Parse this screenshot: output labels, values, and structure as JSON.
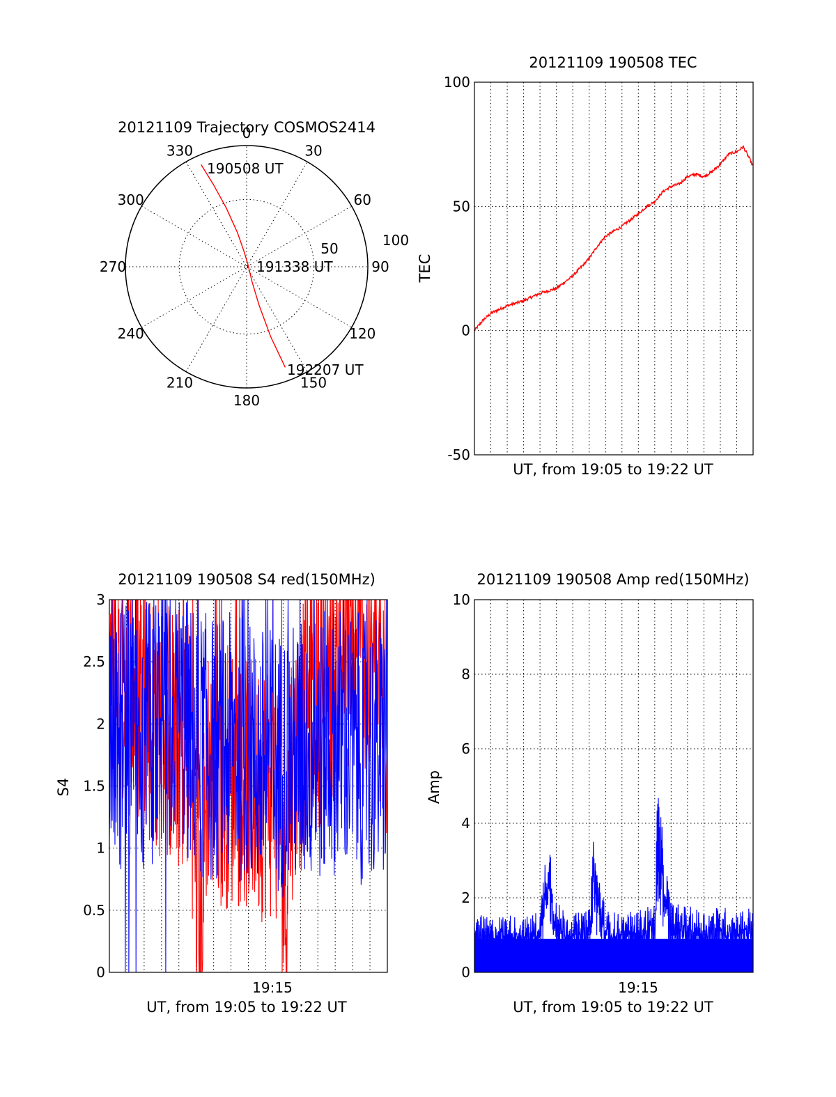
{
  "colors": {
    "red": "#ff0000",
    "blue": "#0000ff",
    "axis": "#000000"
  },
  "chart_data": [
    {
      "type": "polar",
      "title": "20121109 Trajectory COSMOS2414",
      "azimuth_labels": [
        "0",
        "30",
        "60",
        "90",
        "120",
        "150",
        "180",
        "210",
        "240",
        "270",
        "300",
        "330"
      ],
      "radial_labels": [
        "50",
        "100"
      ],
      "grid": true,
      "series": [
        {
          "color": "#ff0000",
          "points": [
            {
              "az": 336,
              "zenith": 83
            },
            {
              "az": 338,
              "zenith": 66
            },
            {
              "az": 341,
              "zenith": 46
            },
            {
              "az": 345,
              "zenith": 26
            },
            {
              "az": 350,
              "zenith": 12
            },
            {
              "az": 30,
              "zenith": 2
            },
            {
              "az": 160,
              "zenith": 12
            },
            {
              "az": 162,
              "zenith": 30
            },
            {
              "az": 161,
              "zenith": 55
            },
            {
              "az": 159,
              "zenith": 80
            }
          ]
        }
      ],
      "annotations": [
        "190508 UT",
        "191338 UT",
        "192207 UT"
      ]
    },
    {
      "type": "line",
      "title": "20121109 190508 TEC",
      "xlabel": "UT, from 19:05 to 19:22 UT",
      "ylabel": "TEC",
      "ylim": [
        -50,
        100
      ],
      "yticks": [
        "100",
        "50",
        "0",
        "-50"
      ],
      "xlim": [
        0,
        17
      ],
      "grid": true,
      "series": [
        {
          "color": "#ff0000",
          "x": [
            0,
            0.5,
            1,
            2,
            3,
            4,
            5,
            6,
            7,
            7.5,
            8,
            9,
            10,
            10.5,
            11,
            11.5,
            12,
            12.5,
            13,
            13.5,
            14,
            14.5,
            15,
            15.5,
            16,
            16.4,
            16.8,
            17
          ],
          "y": [
            0,
            4,
            7,
            10,
            12,
            15,
            17,
            22,
            29,
            34,
            38,
            42,
            47,
            50,
            52,
            56,
            58,
            59,
            62,
            63,
            62,
            64,
            67,
            71,
            72,
            74,
            69,
            66
          ]
        }
      ]
    },
    {
      "type": "line",
      "title": "20121109 190508 S4 red(150MHz)",
      "xlabel": "UT, from 19:05 to 19:22 UT",
      "ylabel": "S4",
      "ylim": [
        0,
        3
      ],
      "yticks": [
        "3",
        "2.5",
        "2",
        "1.5",
        "1",
        "0.5",
        "0"
      ],
      "xticks": [
        "19:15"
      ],
      "xlim": [
        0,
        17
      ],
      "grid": true,
      "series": [
        {
          "color": "#ff0000",
          "x": [
            0,
            1,
            2,
            3,
            4,
            5,
            5.5,
            6,
            7,
            8,
            9,
            10,
            10.5,
            10.8,
            11,
            12,
            13,
            14,
            15,
            16,
            17
          ],
          "y": [
            2.4,
            2.3,
            2.2,
            2.0,
            1.9,
            1.8,
            0.0,
            1.7,
            1.6,
            1.6,
            1.5,
            1.5,
            1.2,
            0.5,
            1.6,
            2.0,
            2.3,
            2.5,
            2.6,
            2.4,
            2.0
          ]
        },
        {
          "color": "#0000ff",
          "x": [
            0,
            1,
            2,
            3,
            4,
            5,
            6,
            7,
            8,
            9,
            10,
            11,
            12,
            13,
            14,
            15,
            16,
            17
          ],
          "y": [
            2.0,
            1.9,
            1.9,
            2.0,
            2.1,
            1.9,
            1.8,
            1.8,
            1.8,
            1.7,
            1.7,
            1.7,
            1.8,
            1.8,
            1.9,
            1.8,
            1.8,
            1.8
          ]
        }
      ]
    },
    {
      "type": "line",
      "title": "20121109 190508 Amp red(150MHz)",
      "xlabel": "UT, from 19:05 to 19:22 UT",
      "ylabel": "Amp",
      "ylim": [
        0,
        10
      ],
      "yticks": [
        "10",
        "8",
        "6",
        "4",
        "2",
        "0"
      ],
      "xticks": [
        "19:15"
      ],
      "xlim": [
        0,
        17
      ],
      "grid": true,
      "series": [
        {
          "color": "#0000ff",
          "x": [
            0,
            1,
            2,
            3,
            4,
            4.5,
            5,
            6,
            7,
            7.2,
            8,
            9,
            10,
            11,
            11.2,
            11.5,
            12,
            13,
            14,
            15,
            16,
            17
          ],
          "y": [
            1.5,
            1.4,
            1.5,
            1.4,
            1.6,
            4.0,
            1.8,
            1.5,
            1.6,
            3.7,
            1.6,
            1.5,
            1.6,
            1.8,
            5.2,
            3.4,
            1.8,
            1.7,
            1.6,
            1.7,
            1.6,
            1.7
          ]
        }
      ]
    }
  ]
}
